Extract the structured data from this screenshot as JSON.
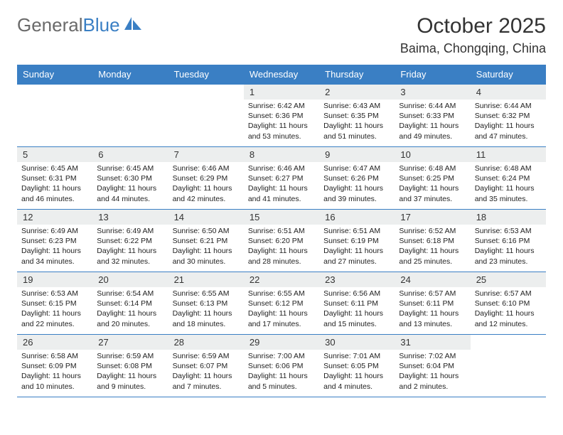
{
  "logo": {
    "word1": "General",
    "word2": "Blue"
  },
  "title": "October 2025",
  "location": "Baima, Chongqing, China",
  "colors": {
    "header_bg": "#3a7fc4",
    "header_text": "#ffffff",
    "daystrip_bg": "#eceeee",
    "border": "#3a7fc4",
    "logo_gray": "#6a6a6a",
    "logo_blue": "#3a7fc4"
  },
  "weekdays": [
    "Sunday",
    "Monday",
    "Tuesday",
    "Wednesday",
    "Thursday",
    "Friday",
    "Saturday"
  ],
  "weeks": [
    [
      {
        "empty": true
      },
      {
        "empty": true
      },
      {
        "empty": true
      },
      {
        "n": "1",
        "sr": "Sunrise: 6:42 AM",
        "ss": "Sunset: 6:36 PM",
        "dl": "Daylight: 11 hours and 53 minutes."
      },
      {
        "n": "2",
        "sr": "Sunrise: 6:43 AM",
        "ss": "Sunset: 6:35 PM",
        "dl": "Daylight: 11 hours and 51 minutes."
      },
      {
        "n": "3",
        "sr": "Sunrise: 6:44 AM",
        "ss": "Sunset: 6:33 PM",
        "dl": "Daylight: 11 hours and 49 minutes."
      },
      {
        "n": "4",
        "sr": "Sunrise: 6:44 AM",
        "ss": "Sunset: 6:32 PM",
        "dl": "Daylight: 11 hours and 47 minutes."
      }
    ],
    [
      {
        "n": "5",
        "sr": "Sunrise: 6:45 AM",
        "ss": "Sunset: 6:31 PM",
        "dl": "Daylight: 11 hours and 46 minutes."
      },
      {
        "n": "6",
        "sr": "Sunrise: 6:45 AM",
        "ss": "Sunset: 6:30 PM",
        "dl": "Daylight: 11 hours and 44 minutes."
      },
      {
        "n": "7",
        "sr": "Sunrise: 6:46 AM",
        "ss": "Sunset: 6:29 PM",
        "dl": "Daylight: 11 hours and 42 minutes."
      },
      {
        "n": "8",
        "sr": "Sunrise: 6:46 AM",
        "ss": "Sunset: 6:27 PM",
        "dl": "Daylight: 11 hours and 41 minutes."
      },
      {
        "n": "9",
        "sr": "Sunrise: 6:47 AM",
        "ss": "Sunset: 6:26 PM",
        "dl": "Daylight: 11 hours and 39 minutes."
      },
      {
        "n": "10",
        "sr": "Sunrise: 6:48 AM",
        "ss": "Sunset: 6:25 PM",
        "dl": "Daylight: 11 hours and 37 minutes."
      },
      {
        "n": "11",
        "sr": "Sunrise: 6:48 AM",
        "ss": "Sunset: 6:24 PM",
        "dl": "Daylight: 11 hours and 35 minutes."
      }
    ],
    [
      {
        "n": "12",
        "sr": "Sunrise: 6:49 AM",
        "ss": "Sunset: 6:23 PM",
        "dl": "Daylight: 11 hours and 34 minutes."
      },
      {
        "n": "13",
        "sr": "Sunrise: 6:49 AM",
        "ss": "Sunset: 6:22 PM",
        "dl": "Daylight: 11 hours and 32 minutes."
      },
      {
        "n": "14",
        "sr": "Sunrise: 6:50 AM",
        "ss": "Sunset: 6:21 PM",
        "dl": "Daylight: 11 hours and 30 minutes."
      },
      {
        "n": "15",
        "sr": "Sunrise: 6:51 AM",
        "ss": "Sunset: 6:20 PM",
        "dl": "Daylight: 11 hours and 28 minutes."
      },
      {
        "n": "16",
        "sr": "Sunrise: 6:51 AM",
        "ss": "Sunset: 6:19 PM",
        "dl": "Daylight: 11 hours and 27 minutes."
      },
      {
        "n": "17",
        "sr": "Sunrise: 6:52 AM",
        "ss": "Sunset: 6:18 PM",
        "dl": "Daylight: 11 hours and 25 minutes."
      },
      {
        "n": "18",
        "sr": "Sunrise: 6:53 AM",
        "ss": "Sunset: 6:16 PM",
        "dl": "Daylight: 11 hours and 23 minutes."
      }
    ],
    [
      {
        "n": "19",
        "sr": "Sunrise: 6:53 AM",
        "ss": "Sunset: 6:15 PM",
        "dl": "Daylight: 11 hours and 22 minutes."
      },
      {
        "n": "20",
        "sr": "Sunrise: 6:54 AM",
        "ss": "Sunset: 6:14 PM",
        "dl": "Daylight: 11 hours and 20 minutes."
      },
      {
        "n": "21",
        "sr": "Sunrise: 6:55 AM",
        "ss": "Sunset: 6:13 PM",
        "dl": "Daylight: 11 hours and 18 minutes."
      },
      {
        "n": "22",
        "sr": "Sunrise: 6:55 AM",
        "ss": "Sunset: 6:12 PM",
        "dl": "Daylight: 11 hours and 17 minutes."
      },
      {
        "n": "23",
        "sr": "Sunrise: 6:56 AM",
        "ss": "Sunset: 6:11 PM",
        "dl": "Daylight: 11 hours and 15 minutes."
      },
      {
        "n": "24",
        "sr": "Sunrise: 6:57 AM",
        "ss": "Sunset: 6:11 PM",
        "dl": "Daylight: 11 hours and 13 minutes."
      },
      {
        "n": "25",
        "sr": "Sunrise: 6:57 AM",
        "ss": "Sunset: 6:10 PM",
        "dl": "Daylight: 11 hours and 12 minutes."
      }
    ],
    [
      {
        "n": "26",
        "sr": "Sunrise: 6:58 AM",
        "ss": "Sunset: 6:09 PM",
        "dl": "Daylight: 11 hours and 10 minutes."
      },
      {
        "n": "27",
        "sr": "Sunrise: 6:59 AM",
        "ss": "Sunset: 6:08 PM",
        "dl": "Daylight: 11 hours and 9 minutes."
      },
      {
        "n": "28",
        "sr": "Sunrise: 6:59 AM",
        "ss": "Sunset: 6:07 PM",
        "dl": "Daylight: 11 hours and 7 minutes."
      },
      {
        "n": "29",
        "sr": "Sunrise: 7:00 AM",
        "ss": "Sunset: 6:06 PM",
        "dl": "Daylight: 11 hours and 5 minutes."
      },
      {
        "n": "30",
        "sr": "Sunrise: 7:01 AM",
        "ss": "Sunset: 6:05 PM",
        "dl": "Daylight: 11 hours and 4 minutes."
      },
      {
        "n": "31",
        "sr": "Sunrise: 7:02 AM",
        "ss": "Sunset: 6:04 PM",
        "dl": "Daylight: 11 hours and 2 minutes."
      },
      {
        "empty": true
      }
    ]
  ]
}
